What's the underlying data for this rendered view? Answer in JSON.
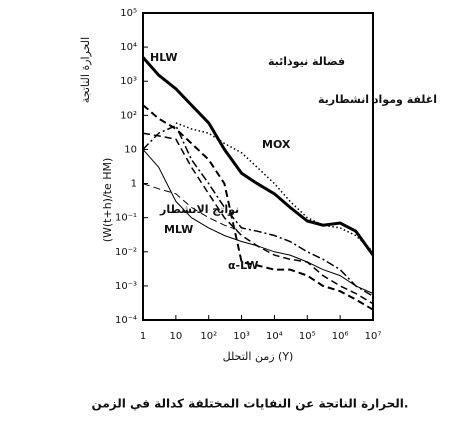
{
  "chart_data": {
    "type": "line",
    "y_label": "(W(t+h)/te HM)",
    "y_label_ar": "الحرارة الناتجة",
    "x_label": "زمن التحلل (Y)",
    "caption": "الحرارة الناتجة عن النفايات المختلفة كدالة في الزمن.",
    "log_x": true,
    "log_y": true,
    "x": [
      1,
      3,
      10,
      30,
      100,
      300,
      1000,
      3000,
      10000,
      30000,
      100000,
      300000,
      1000000,
      3000000,
      10000000
    ],
    "xlim": [
      1,
      10000000
    ],
    "xticks": [
      1,
      10,
      {
        "value": 100,
        "label": "10²"
      },
      {
        "value": 1000,
        "label": "10³"
      },
      {
        "value": 10000,
        "label": "10⁴"
      },
      {
        "value": 100000,
        "label": "10⁵"
      },
      {
        "value": 1000000,
        "label": "10⁶"
      },
      {
        "value": 10000000,
        "label": "10⁷"
      }
    ],
    "ylim": [
      0.0001,
      100000
    ],
    "yticks": [
      {
        "value": 100000,
        "label": "10⁵"
      },
      {
        "value": 10000,
        "label": "10⁴"
      },
      {
        "value": 1000,
        "label": "10³"
      },
      {
        "value": 100,
        "label": "10²"
      },
      10,
      1,
      {
        "value": 0.1,
        "label": "10⁻¹"
      },
      {
        "value": 0.01,
        "label": "10⁻²"
      },
      {
        "value": 0.001,
        "label": "10⁻³"
      },
      {
        "value": 0.0001,
        "label": "10⁻⁴"
      }
    ],
    "series": [
      {
        "name": "HLW",
        "color": "#000000",
        "style": "solid",
        "width": 3,
        "values": [
          5000,
          1500,
          600,
          200,
          60,
          10,
          2,
          1,
          0.5,
          0.2,
          0.08,
          0.06,
          0.07,
          0.04,
          0.008
        ]
      },
      {
        "name": "فضالة نيوذائبة",
        "color": "#000000",
        "style": "dashed",
        "width": 2,
        "values": [
          200,
          80,
          40,
          15,
          5,
          1,
          0.005,
          0.004,
          0.003,
          0.003,
          0.002,
          0.001,
          0.0007,
          0.0004,
          0.0002
        ]
      },
      {
        "name": "اغلفة ومواد انشطارية",
        "color": "#000000",
        "style": "dashed",
        "width": 1.5,
        "values": [
          30,
          25,
          20,
          3,
          0.5,
          0.1,
          0.03,
          0.015,
          0.008,
          0.006,
          0.005,
          0.002,
          0.001,
          0.0006,
          0.0003
        ]
      },
      {
        "name": "MOX",
        "color": "#000000",
        "style": "dotted",
        "width": 1.5,
        "values": [
          null,
          null,
          60,
          40,
          30,
          15,
          8,
          3,
          1,
          0.3,
          0.1,
          0.06,
          0.05,
          0.03,
          0.01
        ]
      },
      {
        "name": "نواتج الانشطار",
        "color": "#000000",
        "style": "dashdot",
        "width": 1.5,
        "values": [
          10,
          30,
          50,
          5,
          1,
          0.2,
          0.05,
          0.04,
          0.03,
          0.02,
          0.01,
          0.006,
          0.003,
          0.001,
          0.0005
        ]
      },
      {
        "name": "MLW",
        "color": "#000000",
        "style": "solid",
        "width": 1,
        "values": [
          10,
          3,
          0.3,
          0.1,
          0.05,
          0.03,
          0.02,
          0.015,
          0.01,
          0.008,
          0.005,
          0.003,
          0.002,
          0.001,
          0.0006
        ]
      },
      {
        "name": "α-LW",
        "color": "#000000",
        "style": "dashed",
        "width": 1,
        "values": [
          1,
          0.7,
          0.5,
          0.2,
          0.1,
          0.06,
          0.04,
          null,
          null,
          null,
          null,
          null,
          null,
          null,
          null
        ]
      }
    ]
  }
}
